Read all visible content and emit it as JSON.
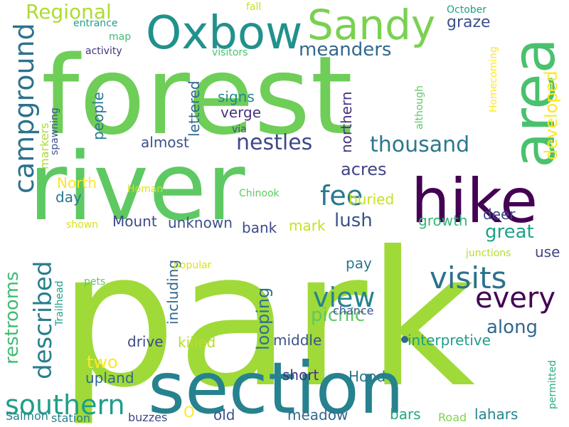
{
  "colors": {
    "background": "#ffffff",
    "palette": [
      "#440154",
      "#3e4989",
      "#31688e",
      "#26828e",
      "#1f9e89",
      "#35b779",
      "#6ece58",
      "#b5de2b",
      "#fde725"
    ]
  },
  "words": [
    {
      "text": "park",
      "color": "#a0da39"
    },
    {
      "text": "forest",
      "color": "#6ece58"
    },
    {
      "text": "river",
      "color": "#5ec962"
    },
    {
      "text": "section",
      "color": "#26828e"
    },
    {
      "text": "hike",
      "color": "#440154"
    },
    {
      "text": "area",
      "color": "#4ac16d"
    },
    {
      "text": "Oxbow",
      "color": "#21918c"
    },
    {
      "text": "Sandy",
      "color": "#7ad151"
    },
    {
      "text": "campground",
      "color": "#2c728e"
    },
    {
      "text": "southern",
      "color": "#1f9e89"
    },
    {
      "text": "described",
      "color": "#277f8e"
    },
    {
      "text": "visits",
      "color": "#2c728e"
    },
    {
      "text": "every",
      "color": "#440154"
    },
    {
      "text": "view",
      "color": "#25848e"
    },
    {
      "text": "fee",
      "color": "#2a788e"
    },
    {
      "text": "thousand",
      "color": "#2a788e"
    },
    {
      "text": "nestles",
      "color": "#3e4989"
    },
    {
      "text": "meanders",
      "color": "#31688e"
    },
    {
      "text": "Regional",
      "color": "#addc30"
    },
    {
      "text": "developed",
      "color": "#fde725"
    },
    {
      "text": "acres",
      "color": "#414487"
    },
    {
      "text": "lush",
      "color": "#3b528b"
    },
    {
      "text": "great",
      "color": "#1fa187"
    },
    {
      "text": "picnic",
      "color": "#5ec962"
    },
    {
      "text": "along",
      "color": "#31688e"
    },
    {
      "text": "looping",
      "color": "#2c728e"
    },
    {
      "text": "restrooms",
      "color": "#3fbc73"
    },
    {
      "text": "two",
      "color": "#fde725"
    },
    {
      "text": "graze",
      "color": "#3b528b"
    },
    {
      "text": "people",
      "color": "#2a788e"
    },
    {
      "text": "almost",
      "color": "#3b528b"
    },
    {
      "text": "signs",
      "color": "#23898e"
    },
    {
      "text": "verge",
      "color": "#46337e"
    },
    {
      "text": "lettered",
      "color": "#31688e"
    },
    {
      "text": "northern",
      "color": "#46337e"
    },
    {
      "text": "markers",
      "color": "#addc30"
    },
    {
      "text": "North",
      "color": "#fde725"
    },
    {
      "text": "day",
      "color": "#2a788e"
    },
    {
      "text": "buried",
      "color": "#c8e020"
    },
    {
      "text": "Mount",
      "color": "#3e4989"
    },
    {
      "text": "unknown",
      "color": "#3b528b"
    },
    {
      "text": "bank",
      "color": "#3e4989"
    },
    {
      "text": "mark",
      "color": "#c8e020"
    },
    {
      "text": "growth",
      "color": "#35b779"
    },
    {
      "text": "deer",
      "color": "#3e4989"
    },
    {
      "text": "including",
      "color": "#31688e"
    },
    {
      "text": "pay",
      "color": "#2a788e"
    },
    {
      "text": "use",
      "color": "#414487"
    },
    {
      "text": "drive",
      "color": "#3e4989"
    },
    {
      "text": "killed",
      "color": "#b5de2b"
    },
    {
      "text": "middle",
      "color": "#3b528b"
    },
    {
      "text": "interpretive",
      "color": "#1f9e89"
    },
    {
      "text": "chance",
      "color": "#3b528b"
    },
    {
      "text": "upland",
      "color": "#31688e"
    },
    {
      "text": "short",
      "color": "#472d7b"
    },
    {
      "text": "Hood",
      "color": "#2a788e"
    },
    {
      "text": "old",
      "color": "#3b528b"
    },
    {
      "text": "meadow",
      "color": "#31688e"
    },
    {
      "text": "bars",
      "color": "#22a884"
    },
    {
      "text": "lahars",
      "color": "#25848e"
    },
    {
      "text": "buzzes",
      "color": "#3e4989"
    },
    {
      "text": "station",
      "color": "#26828e"
    },
    {
      "text": "Salmon",
      "color": "#26828e"
    },
    {
      "text": "O",
      "color": "#fde725"
    },
    {
      "text": "Road",
      "color": "#84d44b"
    },
    {
      "text": "permitted",
      "color": "#28ae80"
    },
    {
      "text": "spawning",
      "color": "#3b528b"
    },
    {
      "text": "Trailhead",
      "color": "#1fa187"
    },
    {
      "text": "pets",
      "color": "#5ec962"
    },
    {
      "text": "popular",
      "color": "#d8e219"
    },
    {
      "text": "shown",
      "color": "#d8e219"
    },
    {
      "text": "Homan",
      "color": "#d8e219"
    },
    {
      "text": "Chinook",
      "color": "#5ec962"
    },
    {
      "text": "junctions",
      "color": "#b5de2b"
    },
    {
      "text": "via",
      "color": "#3e4989"
    },
    {
      "text": "although",
      "color": "#5ec962"
    },
    {
      "text": "Homecoming",
      "color": "#fde725"
    },
    {
      "text": "activity",
      "color": "#46337e"
    },
    {
      "text": "map",
      "color": "#3fbc73"
    },
    {
      "text": "entrance",
      "color": "#1f9e89"
    },
    {
      "text": "visitors",
      "color": "#4ac16d"
    },
    {
      "text": "fall",
      "color": "#c8e020"
    },
    {
      "text": "October",
      "color": "#1fa187"
    }
  ]
}
